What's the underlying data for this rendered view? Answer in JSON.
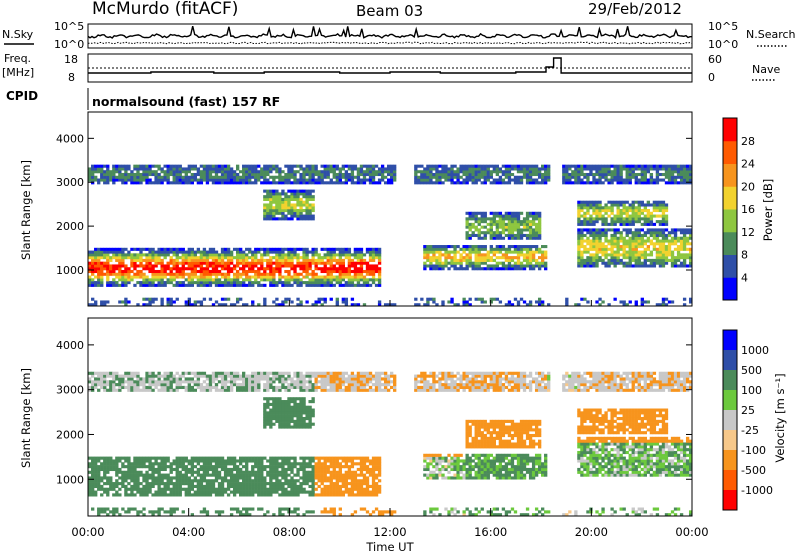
{
  "header": {
    "station": "McMurdo (fitACF)",
    "beam": "Beam 03",
    "date": "29/Feb/2012"
  },
  "summary": {
    "left_labels": {
      "nsky": "N.Sky",
      "freq_line1": "Freq.",
      "freq_line2": "[MHz]",
      "cpid": "CPID"
    },
    "right_labels": {
      "nsearch": "N.Search",
      "nave": "Nave"
    },
    "noise_ticks_left": [
      "10^5",
      "10^0"
    ],
    "noise_ticks_right": [
      "10^5",
      "10^0"
    ],
    "freq_ticks": [
      "18",
      "8"
    ],
    "nave_ticks": [
      "60",
      "0"
    ],
    "cpid_text": "normalsound (fast) 157 RF"
  },
  "chart_data": [
    {
      "type": "heatmap",
      "name": "power",
      "ylabel": "Slant Range [km]",
      "yticks": [
        "1000",
        "2000",
        "3000",
        "4000"
      ],
      "ylim": [
        180,
        4600
      ],
      "xlim": [
        0,
        24
      ],
      "colorbar": {
        "label": "Power [dB]",
        "ticks": [
          "4",
          "8",
          "12",
          "16",
          "20",
          "24",
          "28"
        ],
        "colors": [
          "#0000ff",
          "#2f4fa8",
          "#4b8b5a",
          "#8ec63f",
          "#f2d22e",
          "#f7941d",
          "#ff5a00",
          "#ff0000"
        ]
      }
    },
    {
      "type": "heatmap",
      "name": "velocity",
      "ylabel": "Slant Range [km]",
      "yticks": [
        "1000",
        "2000",
        "3000",
        "4000"
      ],
      "ylim": [
        180,
        4600
      ],
      "xlim": [
        0,
        24
      ],
      "xlabel": "Time UT",
      "xticks": [
        "00:00",
        "04:00",
        "08:00",
        "12:00",
        "16:00",
        "20:00",
        "00:00"
      ],
      "colorbar": {
        "label": "Velocity [m s⁻¹]",
        "ticks": [
          "1000",
          "500",
          "100",
          "25",
          "-25",
          "-100",
          "-500",
          "-1000"
        ],
        "colors": [
          "#0000ff",
          "#2f4fa8",
          "#4b8b5a",
          "#6cc93d",
          "#c8c8c8",
          "#f7c88a",
          "#f7941d",
          "#ff5a00",
          "#ff0000"
        ]
      }
    }
  ]
}
